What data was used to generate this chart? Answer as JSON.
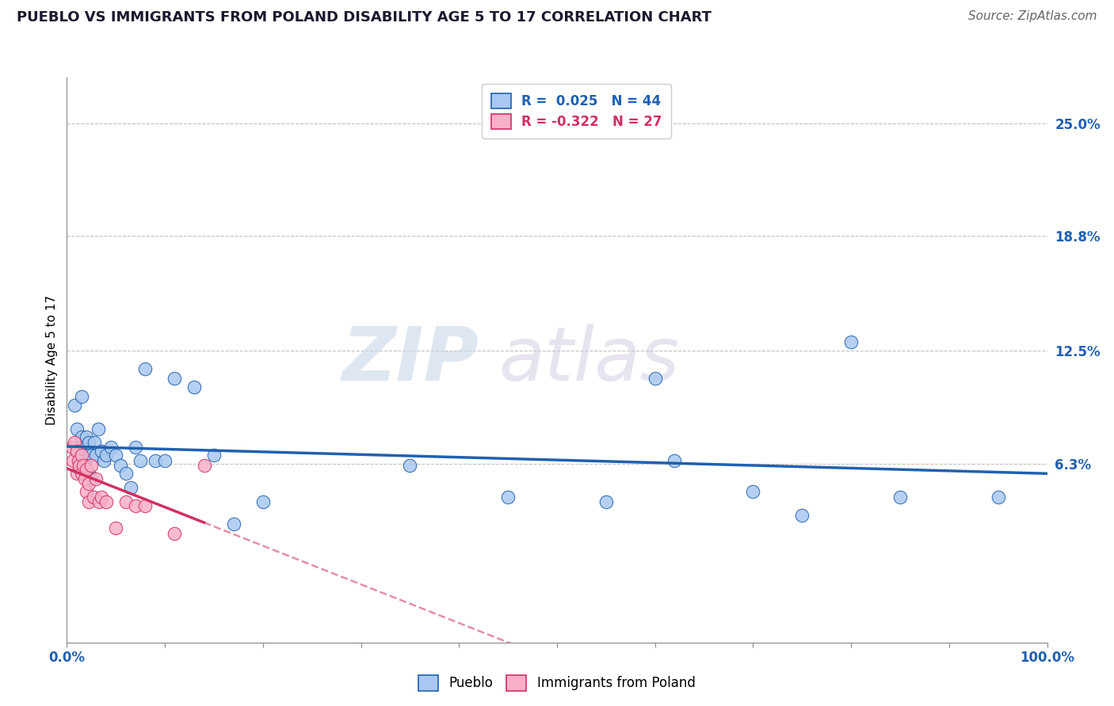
{
  "title": "PUEBLO VS IMMIGRANTS FROM POLAND DISABILITY AGE 5 TO 17 CORRELATION CHART",
  "source": "Source: ZipAtlas.com",
  "ylabel": "Disability Age 5 to 17",
  "legend_labels": [
    "Pueblo",
    "Immigrants from Poland"
  ],
  "r_pueblo": 0.025,
  "n_pueblo": 44,
  "r_poland": -0.322,
  "n_poland": 27,
  "ytick_labels": [
    "6.3%",
    "12.5%",
    "18.8%",
    "25.0%"
  ],
  "ytick_values": [
    0.063,
    0.125,
    0.188,
    0.25
  ],
  "xlim": [
    0.0,
    1.0
  ],
  "ylim": [
    -0.035,
    0.275
  ],
  "pueblo_color": "#a8c8f0",
  "pueblo_line_color": "#2060b0",
  "poland_color": "#f8b0c8",
  "poland_line_color": "#d03060",
  "background_color": "#ffffff",
  "grid_color": "#bbbbbb",
  "pueblo_x": [
    0.008,
    0.01,
    0.012,
    0.015,
    0.015,
    0.018,
    0.018,
    0.02,
    0.02,
    0.022,
    0.022,
    0.025,
    0.025,
    0.028,
    0.03,
    0.032,
    0.035,
    0.038,
    0.04,
    0.045,
    0.05,
    0.055,
    0.06,
    0.065,
    0.07,
    0.075,
    0.08,
    0.09,
    0.1,
    0.11,
    0.13,
    0.15,
    0.17,
    0.2,
    0.35,
    0.45,
    0.55,
    0.6,
    0.62,
    0.7,
    0.75,
    0.8,
    0.85,
    0.95
  ],
  "pueblo_y": [
    0.095,
    0.082,
    0.072,
    0.1,
    0.078,
    0.072,
    0.065,
    0.078,
    0.068,
    0.075,
    0.058,
    0.068,
    0.055,
    0.075,
    0.068,
    0.082,
    0.07,
    0.065,
    0.068,
    0.072,
    0.068,
    0.062,
    0.058,
    0.05,
    0.072,
    0.065,
    0.115,
    0.065,
    0.065,
    0.11,
    0.105,
    0.068,
    0.03,
    0.042,
    0.062,
    0.045,
    0.042,
    0.11,
    0.065,
    0.048,
    0.035,
    0.13,
    0.045,
    0.045
  ],
  "poland_x": [
    0.005,
    0.006,
    0.008,
    0.01,
    0.01,
    0.012,
    0.013,
    0.015,
    0.015,
    0.017,
    0.018,
    0.02,
    0.02,
    0.022,
    0.022,
    0.025,
    0.027,
    0.03,
    0.033,
    0.035,
    0.04,
    0.05,
    0.06,
    0.07,
    0.08,
    0.11,
    0.14
  ],
  "poland_y": [
    0.072,
    0.065,
    0.075,
    0.07,
    0.058,
    0.065,
    0.062,
    0.068,
    0.058,
    0.062,
    0.055,
    0.06,
    0.048,
    0.052,
    0.042,
    0.062,
    0.045,
    0.055,
    0.042,
    0.045,
    0.042,
    0.028,
    0.042,
    0.04,
    0.04,
    0.025,
    0.062
  ],
  "watermark_zip": "ZIP",
  "watermark_atlas": "atlas",
  "title_fontsize": 13,
  "axis_label_fontsize": 11,
  "tick_fontsize": 12,
  "legend_fontsize": 12,
  "source_fontsize": 11
}
